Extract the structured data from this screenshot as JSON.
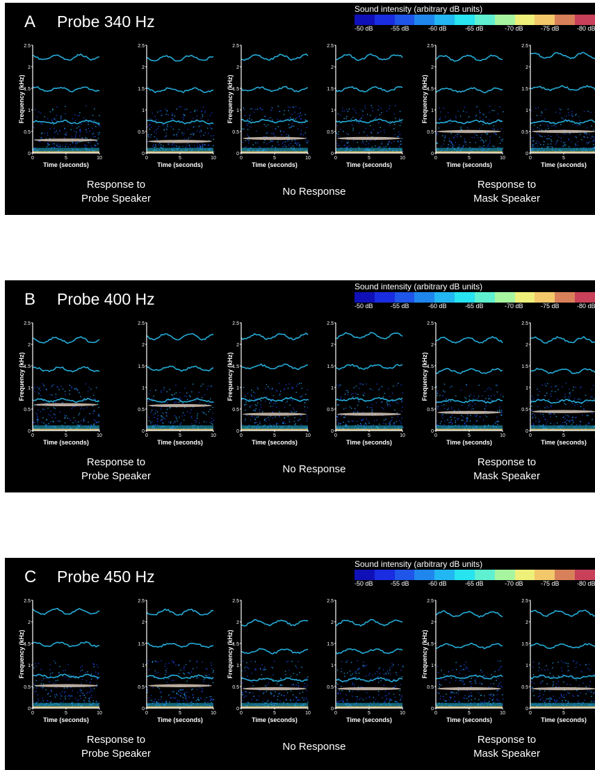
{
  "colorbar": {
    "title": "Sound intensity (arbitrary dB units)",
    "ticks": [
      "-50 dB",
      "-55 dB",
      "-60 dB",
      "-65 dB",
      "-70 dB",
      "-75 dB",
      "-80 dB"
    ],
    "colors": [
      "#1010b8",
      "#1a2de0",
      "#1f55e8",
      "#1f86ee",
      "#22b7f2",
      "#27e4f0",
      "#5ef0d0",
      "#a8f5a0",
      "#eef07a",
      "#f2c86a",
      "#d8805a",
      "#c8405a"
    ]
  },
  "panels": [
    {
      "letter": "A",
      "title": "Probe 340 Hz",
      "captions": [
        "Response to\nProbe Speaker",
        "No Response",
        "Response to\nMask Speaker"
      ]
    },
    {
      "letter": "B",
      "title": "Probe 400 Hz",
      "captions": [
        "Response to\nProbe Speaker",
        "No Response",
        "Response to\nMask Speaker"
      ]
    },
    {
      "letter": "C",
      "title": "Probe 450 Hz",
      "captions": [
        "Response to\nProbe Speaker",
        "No Response",
        "Response to\nMask Speaker"
      ]
    }
  ],
  "chart_data": {
    "type": "heatmap",
    "xlabel": "Time (seconds)",
    "ylabel": "Frequency (kHz)",
    "xlim": [
      0,
      10
    ],
    "ylim": [
      0,
      2.5
    ],
    "xticks": [
      0,
      5,
      10
    ],
    "yticks": [
      0,
      0.5,
      1,
      1.5,
      2,
      2.5
    ],
    "colorscale_dB": [
      -50,
      -55,
      -60,
      -65,
      -70,
      -75,
      -80
    ],
    "panels": [
      {
        "label": "A",
        "probe_hz": 340,
        "spectrograms": [
          {
            "group": "Response to Probe Speaker",
            "harmonics_khz": [
              0.72,
              1.48,
              2.22
            ],
            "tone_khz": 0.3
          },
          {
            "group": "Response to Probe Speaker",
            "harmonics_khz": [
              0.72,
              1.46,
              2.2
            ],
            "tone_khz": 0.27
          },
          {
            "group": "No Response",
            "harmonics_khz": [
              0.74,
              1.48,
              2.22
            ],
            "tone_khz": 0.34
          },
          {
            "group": "No Response",
            "harmonics_khz": [
              0.74,
              1.48,
              2.22
            ],
            "tone_khz": 0.34
          },
          {
            "group": "Response to Mask Speaker",
            "harmonics_khz": [
              0.72,
              1.46,
              2.2
            ],
            "tone_khz": 0.5
          },
          {
            "group": "Response to Mask Speaker",
            "harmonics_khz": [
              0.72,
              1.5,
              2.26
            ],
            "tone_khz": 0.5
          }
        ]
      },
      {
        "label": "B",
        "probe_hz": 400,
        "spectrograms": [
          {
            "group": "Response to Probe Speaker",
            "harmonics_khz": [
              0.7,
              1.42,
              2.1
            ],
            "tone_khz": 0.6
          },
          {
            "group": "Response to Probe Speaker",
            "harmonics_khz": [
              0.7,
              1.44,
              2.18
            ],
            "tone_khz": 0.58
          },
          {
            "group": "No Response",
            "harmonics_khz": [
              0.72,
              1.48,
              2.18
            ],
            "tone_khz": 0.38
          },
          {
            "group": "No Response",
            "harmonics_khz": [
              0.72,
              1.48,
              2.2
            ],
            "tone_khz": 0.38
          },
          {
            "group": "Response to Mask Speaker",
            "harmonics_khz": [
              0.68,
              1.38,
              2.1
            ],
            "tone_khz": 0.42
          },
          {
            "group": "Response to Mask Speaker",
            "harmonics_khz": [
              0.68,
              1.38,
              2.1
            ],
            "tone_khz": 0.44
          }
        ]
      },
      {
        "label": "C",
        "probe_hz": 450,
        "spectrograms": [
          {
            "group": "Response to Probe Speaker",
            "harmonics_khz": [
              0.74,
              1.48,
              2.24
            ],
            "tone_khz": 0.52
          },
          {
            "group": "Response to Probe Speaker",
            "harmonics_khz": [
              0.72,
              1.46,
              2.22
            ],
            "tone_khz": 0.52
          },
          {
            "group": "No Response",
            "harmonics_khz": [
              0.66,
              1.32,
              1.98
            ],
            "tone_khz": 0.45
          },
          {
            "group": "No Response",
            "harmonics_khz": [
              0.66,
              1.32,
              1.98
            ],
            "tone_khz": 0.45
          },
          {
            "group": "Response to Mask Speaker",
            "harmonics_khz": [
              0.72,
              1.44,
              2.18
            ],
            "tone_khz": 0.45
          },
          {
            "group": "Response to Mask Speaker",
            "harmonics_khz": [
              0.72,
              1.44,
              2.2
            ],
            "tone_khz": 0.45
          }
        ]
      }
    ]
  }
}
